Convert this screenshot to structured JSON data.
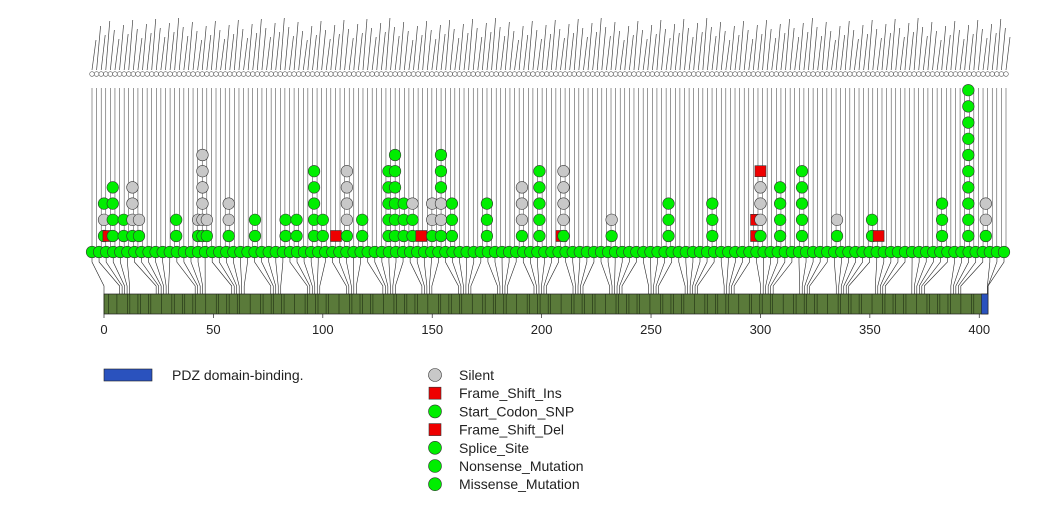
{
  "chart_data": {
    "type": "lollipop",
    "title": "",
    "xlabel": "",
    "ylabel": "",
    "xlim": [
      0,
      405
    ],
    "protein_length": 405,
    "x_ticks": [
      "0",
      "50",
      "100",
      "150",
      "200",
      "250",
      "300",
      "350",
      "400"
    ],
    "domains": [
      {
        "name": "PDZ domain-binding.",
        "start": 401,
        "end": 404,
        "color": "#2a52be"
      }
    ],
    "protein_bar_color": "#5a7a3a",
    "mutation_types": [
      {
        "name": "Silent",
        "color": "#c8c8c8",
        "shape": "circle"
      },
      {
        "name": "Frame_Shift_Ins",
        "color": "#ee0000",
        "shape": "square"
      },
      {
        "name": "Start_Codon_SNP",
        "color": "#00ee00",
        "shape": "circle"
      },
      {
        "name": "Frame_Shift_Del",
        "color": "#ee0000",
        "shape": "square"
      },
      {
        "name": "Splice_Site",
        "color": "#00ee00",
        "shape": "circle"
      },
      {
        "name": "Nonsense_Mutation",
        "color": "#00ee00",
        "shape": "circle"
      },
      {
        "name": "Missense_Mutation",
        "color": "#00ee00",
        "shape": "circle"
      }
    ],
    "mutations": [
      {
        "position": 0,
        "stack": [
          "Missense_Mutation",
          "Silent",
          "Missense_Mutation"
        ]
      },
      {
        "position": 2,
        "stack": [
          "Frame_Shift_Del"
        ]
      },
      {
        "position": 4,
        "stack": [
          "Missense_Mutation",
          "Missense_Mutation",
          "Missense_Mutation",
          "Missense_Mutation"
        ]
      },
      {
        "position": 9,
        "stack": [
          "Missense_Mutation",
          "Missense_Mutation"
        ]
      },
      {
        "position": 13,
        "stack": [
          "Missense_Mutation",
          "Silent",
          "Silent",
          "Silent"
        ]
      },
      {
        "position": 16,
        "stack": [
          "Missense_Mutation",
          "Silent"
        ]
      },
      {
        "position": 33,
        "stack": [
          "Missense_Mutation",
          "Missense_Mutation"
        ]
      },
      {
        "position": 43,
        "stack": [
          "Missense_Mutation",
          "Silent"
        ]
      },
      {
        "position": 45,
        "stack": [
          "Missense_Mutation",
          "Silent",
          "Silent",
          "Silent",
          "Silent",
          "Silent"
        ]
      },
      {
        "position": 47,
        "stack": [
          "Missense_Mutation",
          "Silent"
        ]
      },
      {
        "position": 57,
        "stack": [
          "Missense_Mutation",
          "Silent",
          "Silent"
        ]
      },
      {
        "position": 69,
        "stack": [
          "Missense_Mutation",
          "Missense_Mutation"
        ]
      },
      {
        "position": 83,
        "stack": [
          "Missense_Mutation",
          "Missense_Mutation"
        ]
      },
      {
        "position": 88,
        "stack": [
          "Missense_Mutation",
          "Missense_Mutation"
        ]
      },
      {
        "position": 96,
        "stack": [
          "Missense_Mutation",
          "Missense_Mutation",
          "Missense_Mutation",
          "Missense_Mutation",
          "Missense_Mutation"
        ]
      },
      {
        "position": 100,
        "stack": [
          "Missense_Mutation",
          "Missense_Mutation"
        ]
      },
      {
        "position": 106,
        "stack": [
          "Frame_Shift_Del"
        ]
      },
      {
        "position": 111,
        "stack": [
          "Missense_Mutation",
          "Silent",
          "Silent",
          "Silent",
          "Silent"
        ]
      },
      {
        "position": 118,
        "stack": [
          "Missense_Mutation",
          "Missense_Mutation"
        ]
      },
      {
        "position": 130,
        "stack": [
          "Missense_Mutation",
          "Missense_Mutation",
          "Missense_Mutation",
          "Missense_Mutation",
          "Missense_Mutation"
        ]
      },
      {
        "position": 133,
        "stack": [
          "Missense_Mutation",
          "Missense_Mutation",
          "Missense_Mutation",
          "Missense_Mutation",
          "Missense_Mutation",
          "Missense_Mutation"
        ]
      },
      {
        "position": 137,
        "stack": [
          "Missense_Mutation",
          "Missense_Mutation",
          "Missense_Mutation"
        ]
      },
      {
        "position": 141,
        "stack": [
          "Missense_Mutation",
          "Missense_Mutation",
          "Silent"
        ]
      },
      {
        "position": 145,
        "stack": [
          "Frame_Shift_Del"
        ]
      },
      {
        "position": 150,
        "stack": [
          "Missense_Mutation",
          "Silent",
          "Silent"
        ]
      },
      {
        "position": 154,
        "stack": [
          "Missense_Mutation",
          "Silent",
          "Silent",
          "Missense_Mutation",
          "Missense_Mutation",
          "Missense_Mutation"
        ]
      },
      {
        "position": 159,
        "stack": [
          "Missense_Mutation",
          "Missense_Mutation",
          "Missense_Mutation"
        ]
      },
      {
        "position": 175,
        "stack": [
          "Missense_Mutation",
          "Missense_Mutation",
          "Missense_Mutation"
        ]
      },
      {
        "position": 191,
        "stack": [
          "Missense_Mutation",
          "Silent",
          "Silent",
          "Silent"
        ]
      },
      {
        "position": 199,
        "stack": [
          "Missense_Mutation",
          "Missense_Mutation",
          "Missense_Mutation",
          "Missense_Mutation",
          "Missense_Mutation"
        ]
      },
      {
        "position": 209,
        "stack": [
          "Frame_Shift_Del"
        ]
      },
      {
        "position": 210,
        "stack": [
          "Missense_Mutation",
          "Silent",
          "Silent",
          "Silent",
          "Silent"
        ]
      },
      {
        "position": 232,
        "stack": [
          "Missense_Mutation",
          "Silent"
        ]
      },
      {
        "position": 258,
        "stack": [
          "Missense_Mutation",
          "Missense_Mutation",
          "Missense_Mutation"
        ]
      },
      {
        "position": 278,
        "stack": [
          "Missense_Mutation",
          "Missense_Mutation",
          "Missense_Mutation"
        ]
      },
      {
        "position": 298,
        "stack": [
          "Frame_Shift_Del",
          "Frame_Shift_Del"
        ]
      },
      {
        "position": 300,
        "stack": [
          "Missense_Mutation",
          "Silent",
          "Silent",
          "Silent",
          "Frame_Shift_Ins"
        ]
      },
      {
        "position": 309,
        "stack": [
          "Missense_Mutation",
          "Missense_Mutation",
          "Missense_Mutation",
          "Missense_Mutation"
        ]
      },
      {
        "position": 319,
        "stack": [
          "Missense_Mutation",
          "Missense_Mutation",
          "Missense_Mutation",
          "Missense_Mutation",
          "Missense_Mutation"
        ]
      },
      {
        "position": 335,
        "stack": [
          "Missense_Mutation",
          "Silent"
        ]
      },
      {
        "position": 351,
        "stack": [
          "Missense_Mutation",
          "Missense_Mutation"
        ]
      },
      {
        "position": 354,
        "stack": [
          "Frame_Shift_Del"
        ]
      },
      {
        "position": 383,
        "stack": [
          "Missense_Mutation",
          "Missense_Mutation",
          "Missense_Mutation"
        ]
      },
      {
        "position": 395,
        "stack": [
          "Missense_Mutation",
          "Missense_Mutation",
          "Missense_Mutation",
          "Missense_Mutation",
          "Missense_Mutation",
          "Missense_Mutation",
          "Missense_Mutation",
          "Missense_Mutation",
          "Missense_Mutation",
          "Missense_Mutation"
        ]
      },
      {
        "position": 403,
        "stack": [
          "Missense_Mutation",
          "Silent",
          "Silent"
        ]
      }
    ]
  }
}
